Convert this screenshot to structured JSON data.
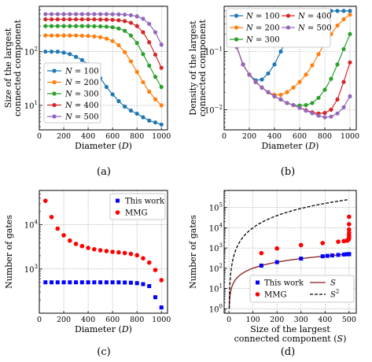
{
  "captions": [
    "(a)",
    "(b)",
    "(c)",
    "(d)"
  ],
  "colors": {
    "N100": "#1f77b4",
    "N200": "#ff7f0e",
    "N300": "#2ca02c",
    "N400": "#d62728",
    "N500": "#9467bd",
    "this_work": "#0000ff",
    "mmg": "#ff0000",
    "S_line": "#8b1a1a",
    "S2_line": "#000000"
  },
  "chart_data": [
    {
      "type": "line",
      "xlabel": "Diameter (D)",
      "ylabel": "Size of the largest connected component",
      "xlim": [
        0,
        1050
      ],
      "ylim": [
        3.5,
        700
      ],
      "yscale": "log",
      "xticks": [
        0,
        200,
        400,
        600,
        800,
        1000
      ],
      "yticks": [
        "10^1",
        "10^2"
      ],
      "grid": true,
      "legend": "bottom-left",
      "x": [
        50,
        100,
        150,
        200,
        250,
        300,
        350,
        400,
        450,
        500,
        550,
        600,
        650,
        700,
        750,
        800,
        850,
        900,
        950,
        1000
      ],
      "series": [
        {
          "name": "N = 100",
          "values": [
            100,
            100,
            100,
            96,
            90,
            80,
            70,
            58,
            44,
            32,
            22,
            16,
            12,
            9.5,
            8,
            7,
            6,
            5.2,
            4.8,
            4.4
          ]
        },
        {
          "name": "N = 200",
          "values": [
            200,
            200,
            200,
            200,
            200,
            200,
            198,
            196,
            192,
            186,
            175,
            158,
            132,
            98,
            66,
            42,
            27,
            18,
            13,
            10
          ]
        },
        {
          "name": "N = 300",
          "values": [
            300,
            300,
            300,
            300,
            300,
            300,
            300,
            300,
            298,
            296,
            292,
            285,
            270,
            245,
            200,
            145,
            90,
            55,
            34,
            22
          ]
        },
        {
          "name": "N = 400",
          "values": [
            400,
            400,
            400,
            400,
            400,
            400,
            400,
            400,
            400,
            398,
            396,
            392,
            385,
            370,
            345,
            300,
            230,
            150,
            88,
            50
          ]
        },
        {
          "name": "N = 500",
          "values": [
            500,
            500,
            500,
            500,
            500,
            500,
            500,
            500,
            500,
            500,
            500,
            498,
            495,
            490,
            478,
            455,
            410,
            330,
            230,
            135
          ]
        }
      ]
    },
    {
      "type": "line",
      "xlabel": "Diameter (D)",
      "ylabel": "Density of the largest connected component",
      "xlim": [
        0,
        1050
      ],
      "ylim": [
        0.0045,
        0.6
      ],
      "yscale": "log",
      "xticks": [
        0,
        200,
        400,
        600,
        800,
        1000
      ],
      "yticks": [
        "10^-2",
        "10^-1"
      ],
      "grid": true,
      "legend": "top-left",
      "x": [
        50,
        100,
        150,
        200,
        250,
        300,
        350,
        400,
        450,
        500,
        550,
        600,
        650,
        700,
        750,
        800,
        850,
        900,
        950,
        1000
      ],
      "series": [
        {
          "name": "N = 100",
          "values": [
            0.3,
            0.12,
            0.06,
            0.04,
            0.032,
            0.033,
            0.042,
            0.06,
            0.1,
            0.17,
            0.26,
            0.35,
            0.42,
            0.48,
            0.5,
            0.5,
            0.5,
            0.5,
            0.5,
            0.5
          ]
        },
        {
          "name": "N = 200",
          "values": [
            0.3,
            0.12,
            0.06,
            0.04,
            0.03,
            0.024,
            0.02,
            0.018,
            0.018,
            0.02,
            0.024,
            0.03,
            0.04,
            0.058,
            0.09,
            0.14,
            0.2,
            0.28,
            0.36,
            0.43
          ]
        },
        {
          "name": "N = 300",
          "values": [
            0.3,
            0.12,
            0.06,
            0.04,
            0.03,
            0.024,
            0.02,
            0.017,
            0.015,
            0.013,
            0.012,
            0.0118,
            0.012,
            0.013,
            0.016,
            0.022,
            0.034,
            0.06,
            0.11,
            0.2
          ]
        },
        {
          "name": "N = 400",
          "values": [
            0.3,
            0.12,
            0.06,
            0.04,
            0.03,
            0.024,
            0.02,
            0.017,
            0.015,
            0.013,
            0.012,
            0.0108,
            0.0098,
            0.009,
            0.0086,
            0.0088,
            0.01,
            0.015,
            0.03,
            0.065
          ]
        },
        {
          "name": "N = 500",
          "values": [
            0.3,
            0.12,
            0.06,
            0.04,
            0.03,
            0.024,
            0.02,
            0.017,
            0.015,
            0.013,
            0.012,
            0.0108,
            0.0096,
            0.0087,
            0.0079,
            0.0074,
            0.0076,
            0.0086,
            0.011,
            0.017
          ]
        }
      ]
    },
    {
      "type": "scatter",
      "xlabel": "Diameter (D)",
      "ylabel": "Number of gates",
      "xlim": [
        0,
        1050
      ],
      "ylim": [
        100,
        60000
      ],
      "yscale": "log",
      "xticks": [
        0,
        200,
        400,
        600,
        800,
        1000
      ],
      "yticks": [
        "10^3",
        "10^4"
      ],
      "grid": true,
      "legend": "top-right",
      "x": [
        50,
        100,
        150,
        200,
        250,
        300,
        350,
        400,
        450,
        500,
        550,
        600,
        650,
        700,
        750,
        800,
        850,
        900,
        950,
        1000
      ],
      "series": [
        {
          "name": "This work",
          "values": [
            500,
            500,
            500,
            500,
            500,
            500,
            500,
            500,
            500,
            500,
            500,
            500,
            500,
            495,
            490,
            478,
            455,
            410,
            230,
            135
          ]
        },
        {
          "name": "MMG",
          "values": [
            35000,
            15000,
            8200,
            5800,
            4400,
            3700,
            3300,
            3000,
            2800,
            2650,
            2550,
            2450,
            2380,
            2300,
            2200,
            2050,
            1750,
            1400,
            950,
            560
          ]
        }
      ]
    },
    {
      "type": "scatter",
      "xlabel": "Size of the largest connected component (S)",
      "ylabel": "Number of gates",
      "xlim": [
        -20,
        530
      ],
      "ylim": [
        0.6,
        700000
      ],
      "yscale": "log",
      "xticks": [
        0,
        100,
        200,
        300,
        400,
        500
      ],
      "yticks": [
        "10^0",
        "10^1",
        "10^2",
        "10^3",
        "10^4",
        "10^5"
      ],
      "grid": true,
      "legend": "bottom-right",
      "series": [
        {
          "name": "This work",
          "x": [
            135,
            200,
            300,
            390,
            410,
            430,
            455,
            478,
            490,
            495,
            498,
            500,
            500
          ],
          "values": [
            135,
            200,
            300,
            390,
            410,
            430,
            455,
            478,
            490,
            495,
            498,
            500,
            500
          ]
        },
        {
          "name": "MMG",
          "x": [
            135,
            200,
            300,
            390,
            455,
            478,
            490,
            495,
            498,
            500,
            500,
            500,
            500,
            500,
            500,
            500
          ],
          "values": [
            560,
            950,
            1400,
            1750,
            2050,
            2200,
            2300,
            2450,
            2650,
            3000,
            3700,
            4400,
            5800,
            8200,
            15000,
            35000
          ]
        },
        {
          "name": "S",
          "line": "y = S"
        },
        {
          "name": "S^2",
          "line": "y = S^2"
        }
      ]
    }
  ]
}
